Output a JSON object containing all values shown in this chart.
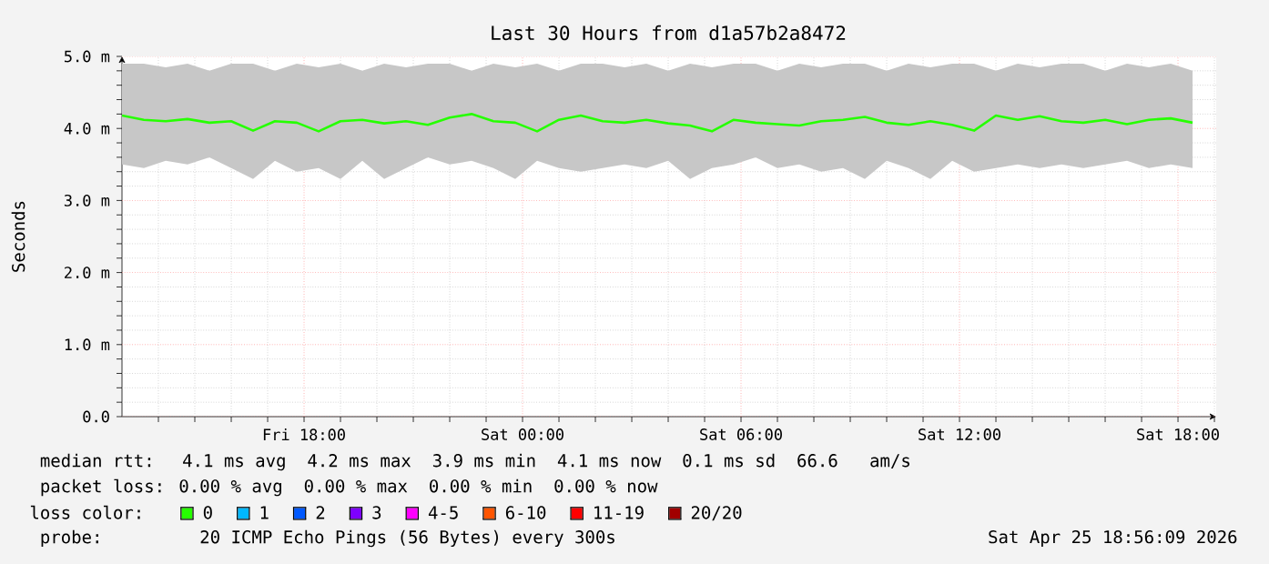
{
  "chart_data": {
    "type": "line",
    "title": "Last 30 Hours from d1a57b2a8472",
    "ylabel": "Seconds",
    "x": [
      "2026-04-24T13:00",
      "2026-04-24T13:36",
      "2026-04-24T14:12",
      "2026-04-24T14:48",
      "2026-04-24T15:24",
      "2026-04-24T16:00",
      "2026-04-24T16:36",
      "2026-04-24T17:12",
      "2026-04-24T17:48",
      "2026-04-24T18:24",
      "2026-04-24T19:00",
      "2026-04-24T19:36",
      "2026-04-24T20:12",
      "2026-04-24T20:48",
      "2026-04-24T21:24",
      "2026-04-24T22:00",
      "2026-04-24T22:36",
      "2026-04-24T23:12",
      "2026-04-24T23:48",
      "2026-04-25T00:24",
      "2026-04-25T01:00",
      "2026-04-25T01:36",
      "2026-04-25T02:12",
      "2026-04-25T02:48",
      "2026-04-25T03:24",
      "2026-04-25T04:00",
      "2026-04-25T04:36",
      "2026-04-25T05:12",
      "2026-04-25T05:48",
      "2026-04-25T06:24",
      "2026-04-25T07:00",
      "2026-04-25T07:36",
      "2026-04-25T08:12",
      "2026-04-25T08:48",
      "2026-04-25T09:24",
      "2026-04-25T10:00",
      "2026-04-25T10:36",
      "2026-04-25T11:12",
      "2026-04-25T11:48",
      "2026-04-25T12:24",
      "2026-04-25T13:00",
      "2026-04-25T13:36",
      "2026-04-25T14:12",
      "2026-04-25T14:48",
      "2026-04-25T15:24",
      "2026-04-25T16:00",
      "2026-04-25T16:36",
      "2026-04-25T17:12",
      "2026-04-25T17:48",
      "2026-04-25T18:24"
    ],
    "series": [
      {
        "name": "0",
        "color": "#26ff00",
        "values": [
          4.18,
          4.12,
          4.1,
          4.13,
          4.08,
          4.1,
          3.97,
          4.1,
          4.08,
          3.96,
          4.1,
          4.12,
          4.07,
          4.1,
          4.05,
          4.15,
          4.2,
          4.1,
          4.08,
          3.96,
          4.12,
          4.18,
          4.1,
          4.08,
          4.12,
          4.07,
          4.04,
          3.96,
          4.12,
          4.08,
          4.06,
          4.04,
          4.1,
          4.12,
          4.16,
          4.08,
          4.05,
          4.1,
          4.05,
          3.97,
          4.18,
          4.12,
          4.17,
          4.1,
          4.08,
          4.12,
          4.06,
          4.12,
          4.14,
          4.08
        ],
        "lower": [
          3.5,
          3.45,
          3.55,
          3.5,
          3.6,
          3.45,
          3.3,
          3.55,
          3.4,
          3.45,
          3.3,
          3.55,
          3.3,
          3.45,
          3.6,
          3.5,
          3.55,
          3.45,
          3.3,
          3.55,
          3.45,
          3.4,
          3.45,
          3.5,
          3.45,
          3.55,
          3.3,
          3.45,
          3.5,
          3.6,
          3.45,
          3.5,
          3.4,
          3.45,
          3.3,
          3.55,
          3.45,
          3.3,
          3.55,
          3.4,
          3.45,
          3.5,
          3.45,
          3.5,
          3.45,
          3.5,
          3.55,
          3.45,
          3.5,
          3.45
        ],
        "upper": [
          4.9,
          4.9,
          4.85,
          4.9,
          4.8,
          4.9,
          4.9,
          4.8,
          4.9,
          4.85,
          4.9,
          4.8,
          4.9,
          4.85,
          4.9,
          4.9,
          4.8,
          4.9,
          4.85,
          4.9,
          4.8,
          4.9,
          4.9,
          4.85,
          4.9,
          4.8,
          4.9,
          4.85,
          4.9,
          4.9,
          4.8,
          4.9,
          4.85,
          4.9,
          4.9,
          4.8,
          4.9,
          4.85,
          4.9,
          4.9,
          4.8,
          4.9,
          4.85,
          4.9,
          4.9,
          4.8,
          4.9,
          4.85,
          4.9,
          4.8
        ]
      },
      {
        "name": "1",
        "color": "#00b8ff",
        "values": [
          null,
          null,
          null,
          null,
          null,
          null,
          null,
          null,
          null,
          null,
          null,
          null,
          null,
          null,
          null,
          null,
          null,
          null,
          null,
          null,
          null,
          null,
          null,
          null,
          null,
          null,
          null,
          null,
          null,
          null,
          null,
          null,
          null,
          null,
          null,
          null,
          null,
          null,
          null,
          null,
          null,
          null,
          null,
          null,
          null,
          null,
          null,
          null,
          null,
          null
        ]
      },
      {
        "name": "2",
        "color": "#0059ff",
        "values": [
          null,
          null,
          null,
          null,
          null,
          null,
          null,
          null,
          null,
          null,
          null,
          null,
          null,
          null,
          null,
          null,
          null,
          null,
          null,
          null,
          null,
          null,
          null,
          null,
          null,
          null,
          null,
          null,
          null,
          null,
          null,
          null,
          null,
          null,
          null,
          null,
          null,
          null,
          null,
          null,
          null,
          null,
          null,
          null,
          null,
          null,
          null,
          null,
          null,
          null
        ]
      },
      {
        "name": "3",
        "color": "#7e00ff",
        "values": [
          null,
          null,
          null,
          null,
          null,
          null,
          null,
          null,
          null,
          null,
          null,
          null,
          null,
          null,
          null,
          null,
          null,
          null,
          null,
          null,
          null,
          null,
          null,
          null,
          null,
          null,
          null,
          null,
          null,
          null,
          null,
          null,
          null,
          null,
          null,
          null,
          null,
          null,
          null,
          null,
          null,
          null,
          null,
          null,
          null,
          null,
          null,
          null,
          null,
          null
        ]
      },
      {
        "name": "4-5",
        "color": "#ff00ff",
        "values": [
          null,
          null,
          null,
          null,
          null,
          null,
          null,
          null,
          null,
          null,
          null,
          null,
          null,
          null,
          null,
          null,
          null,
          null,
          null,
          null,
          null,
          null,
          null,
          null,
          null,
          null,
          null,
          null,
          null,
          null,
          null,
          null,
          null,
          null,
          null,
          null,
          null,
          null,
          null,
          null,
          null,
          null,
          null,
          null,
          null,
          null,
          null,
          null,
          null,
          null
        ]
      },
      {
        "name": "6-10",
        "color": "#ff5500",
        "values": [
          null,
          null,
          null,
          null,
          null,
          null,
          null,
          null,
          null,
          null,
          null,
          null,
          null,
          null,
          null,
          null,
          null,
          null,
          null,
          null,
          null,
          null,
          null,
          null,
          null,
          null,
          null,
          null,
          null,
          null,
          null,
          null,
          null,
          null,
          null,
          null,
          null,
          null,
          null,
          null,
          null,
          null,
          null,
          null,
          null,
          null,
          null,
          null,
          null,
          null
        ]
      },
      {
        "name": "11-19",
        "color": "#ff0000",
        "values": [
          null,
          null,
          null,
          null,
          null,
          null,
          null,
          null,
          null,
          null,
          null,
          null,
          null,
          null,
          null,
          null,
          null,
          null,
          null,
          null,
          null,
          null,
          null,
          null,
          null,
          null,
          null,
          null,
          null,
          null,
          null,
          null,
          null,
          null,
          null,
          null,
          null,
          null,
          null,
          null,
          null,
          null,
          null,
          null,
          null,
          null,
          null,
          null,
          null,
          null
        ]
      },
      {
        "name": "20/20",
        "color": "#a10000",
        "values": [
          null,
          null,
          null,
          null,
          null,
          null,
          null,
          null,
          null,
          null,
          null,
          null,
          null,
          null,
          null,
          null,
          null,
          null,
          null,
          null,
          null,
          null,
          null,
          null,
          null,
          null,
          null,
          null,
          null,
          null,
          null,
          null,
          null,
          null,
          null,
          null,
          null,
          null,
          null,
          null,
          null,
          null,
          null,
          null,
          null,
          null,
          null,
          null,
          null,
          null
        ]
      }
    ],
    "xlim": [
      "2026-04-24T13:00",
      "2026-04-25T19:03"
    ],
    "xticks": [
      {
        "value": "2026-04-24T14:00",
        "label": null
      },
      {
        "value": "2026-04-24T15:00",
        "label": null
      },
      {
        "value": "2026-04-24T16:00",
        "label": null
      },
      {
        "value": "2026-04-24T17:00",
        "label": null
      },
      {
        "value": "2026-04-24T18:00",
        "label": "Fri 18:00"
      },
      {
        "value": "2026-04-24T19:00",
        "label": null
      },
      {
        "value": "2026-04-24T20:00",
        "label": null
      },
      {
        "value": "2026-04-24T21:00",
        "label": null
      },
      {
        "value": "2026-04-24T22:00",
        "label": null
      },
      {
        "value": "2026-04-24T23:00",
        "label": null
      },
      {
        "value": "2026-04-25T00:00",
        "label": "Sat 00:00"
      },
      {
        "value": "2026-04-25T01:00",
        "label": null
      },
      {
        "value": "2026-04-25T02:00",
        "label": null
      },
      {
        "value": "2026-04-25T03:00",
        "label": null
      },
      {
        "value": "2026-04-25T04:00",
        "label": null
      },
      {
        "value": "2026-04-25T05:00",
        "label": null
      },
      {
        "value": "2026-04-25T06:00",
        "label": "Sat 06:00"
      },
      {
        "value": "2026-04-25T07:00",
        "label": null
      },
      {
        "value": "2026-04-25T08:00",
        "label": null
      },
      {
        "value": "2026-04-25T09:00",
        "label": null
      },
      {
        "value": "2026-04-25T10:00",
        "label": null
      },
      {
        "value": "2026-04-25T11:00",
        "label": null
      },
      {
        "value": "2026-04-25T12:00",
        "label": "Sat 12:00"
      },
      {
        "value": "2026-04-25T13:00",
        "label": null
      },
      {
        "value": "2026-04-25T14:00",
        "label": null
      },
      {
        "value": "2026-04-25T15:00",
        "label": null
      },
      {
        "value": "2026-04-25T16:00",
        "label": null
      },
      {
        "value": "2026-04-25T17:00",
        "label": null
      },
      {
        "value": "2026-04-25T18:00",
        "label": "Sat 18:00"
      },
      {
        "value": "2026-04-25T19:00",
        "label": null
      }
    ],
    "ylim": [
      0,
      5
    ],
    "yticks": [
      {
        "value": 0,
        "label": "0.0"
      },
      {
        "value": 0.2,
        "label": null
      },
      {
        "value": 0.4,
        "label": null
      },
      {
        "value": 0.6,
        "label": null
      },
      {
        "value": 0.8,
        "label": null
      },
      {
        "value": 1,
        "label": "1.0 m"
      },
      {
        "value": 1.2,
        "label": null
      },
      {
        "value": 1.4,
        "label": null
      },
      {
        "value": 1.6,
        "label": null
      },
      {
        "value": 1.8,
        "label": null
      },
      {
        "value": 2,
        "label": "2.0 m"
      },
      {
        "value": 2.2,
        "label": null
      },
      {
        "value": 2.4,
        "label": null
      },
      {
        "value": 2.6,
        "label": null
      },
      {
        "value": 2.8,
        "label": null
      },
      {
        "value": 3,
        "label": "3.0 m"
      },
      {
        "value": 3.2,
        "label": null
      },
      {
        "value": 3.4,
        "label": null
      },
      {
        "value": 3.6,
        "label": null
      },
      {
        "value": 3.8,
        "label": null
      },
      {
        "value": 4,
        "label": "4.0 m"
      },
      {
        "value": 4.2,
        "label": null
      },
      {
        "value": 4.4,
        "label": null
      },
      {
        "value": 4.6,
        "label": null
      },
      {
        "value": 4.8,
        "label": null
      },
      {
        "value": 5,
        "label": "5.0 m"
      }
    ],
    "grid": true,
    "legend": "bottom",
    "legend_title": "loss color:",
    "marker": "none",
    "line_style": "solid",
    "annotations": [
      "median rtt:  4.1 ms avg  4.2 ms max  3.9 ms min  4.1 ms now  0.1 ms sd  66.6   am/s",
      "packet loss: 0.00 % avg  0.00 % max  0.00 % min  0.00 % now",
      "probe:       20 ICMP Echo Pings (56 Bytes) every 300s",
      "Sat Apr 25 18:56:09 2026"
    ]
  }
}
